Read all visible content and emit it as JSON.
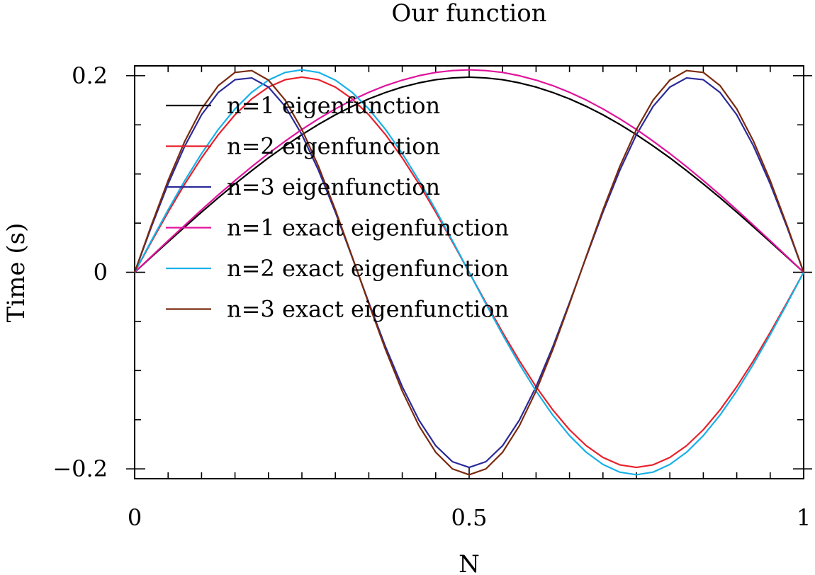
{
  "chart_data": {
    "type": "line",
    "title": "Our function",
    "xlabel": "N",
    "ylabel": "Time (s)",
    "xlim": [
      0,
      1
    ],
    "ylim": [
      -0.21,
      0.21
    ],
    "x_ticks": [
      0,
      0.5,
      1
    ],
    "x_tick_labels": [
      "0",
      "0.5",
      "1"
    ],
    "y_ticks": [
      -0.2,
      0,
      0.2
    ],
    "y_tick_labels": [
      "−0.2",
      "0",
      "0.2"
    ],
    "grid": false,
    "legend_position": "top-left",
    "x": [
      0,
      0.025,
      0.05,
      0.075,
      0.1,
      0.125,
      0.15,
      0.175,
      0.2,
      0.225,
      0.25,
      0.275,
      0.3,
      0.325,
      0.35,
      0.375,
      0.4,
      0.425,
      0.45,
      0.475,
      0.5,
      0.525,
      0.55,
      0.575,
      0.6,
      0.625,
      0.65,
      0.675,
      0.7,
      0.725,
      0.75,
      0.775,
      0.8,
      0.825,
      0.85,
      0.875,
      0.9,
      0.925,
      0.95,
      0.975,
      1
    ],
    "series": [
      {
        "name": "n=1 eigenfunction",
        "color": "#000000",
        "values": [
          0,
          0.0155,
          0.0309,
          0.0462,
          0.0612,
          0.0758,
          0.0899,
          0.1034,
          0.1164,
          0.1285,
          0.14,
          0.1505,
          0.1602,
          0.1688,
          0.1764,
          0.1829,
          0.1884,
          0.1927,
          0.1959,
          0.1977,
          0.1985,
          0.1977,
          0.1959,
          0.1927,
          0.1884,
          0.1829,
          0.1764,
          0.1688,
          0.1602,
          0.1505,
          0.14,
          0.1285,
          0.1164,
          0.1034,
          0.0899,
          0.0758,
          0.0612,
          0.0462,
          0.0309,
          0.0155,
          0
        ]
      },
      {
        "name": "n=2 eigenfunction",
        "color": "#e8202a",
        "values": [
          0,
          0.0309,
          0.0612,
          0.0899,
          0.1164,
          0.14,
          0.1602,
          0.1764,
          0.1884,
          0.1959,
          0.1985,
          0.1959,
          0.1884,
          0.1764,
          0.1602,
          0.14,
          0.1164,
          0.0899,
          0.0612,
          0.0309,
          0,
          -0.0309,
          -0.0612,
          -0.0899,
          -0.1164,
          -0.14,
          -0.1602,
          -0.1764,
          -0.1884,
          -0.1959,
          -0.1985,
          -0.1959,
          -0.1884,
          -0.1764,
          -0.1602,
          -0.14,
          -0.1164,
          -0.0899,
          -0.0612,
          -0.0309,
          0
        ]
      },
      {
        "name": "n=3 eigenfunction",
        "color": "#2a2a9a",
        "values": [
          0,
          0.0462,
          0.0899,
          0.1285,
          0.1602,
          0.1829,
          0.1959,
          0.1977,
          0.1884,
          0.1688,
          0.14,
          0.1034,
          0.0612,
          0.0155,
          -0.0309,
          -0.0758,
          -0.1164,
          -0.1505,
          -0.1764,
          -0.1927,
          -0.1985,
          -0.1927,
          -0.1764,
          -0.1505,
          -0.1164,
          -0.0758,
          -0.0309,
          0.0155,
          0.0612,
          0.1034,
          0.14,
          0.1688,
          0.1884,
          0.1977,
          0.1959,
          0.1829,
          0.1602,
          0.1285,
          0.0899,
          0.0462,
          0
        ]
      },
      {
        "name": "n=1 exact eigenfunction",
        "color": "#e0139c",
        "values": [
          0,
          0.0161,
          0.0321,
          0.0479,
          0.0635,
          0.0787,
          0.0933,
          0.1074,
          0.1208,
          0.1334,
          0.1453,
          0.1562,
          0.1662,
          0.1752,
          0.1831,
          0.1899,
          0.1955,
          0.2,
          0.2033,
          0.2052,
          0.206,
          0.2052,
          0.2033,
          0.2,
          0.1955,
          0.1899,
          0.1831,
          0.1752,
          0.1662,
          0.1562,
          0.1453,
          0.1334,
          0.1208,
          0.1074,
          0.0933,
          0.0787,
          0.0635,
          0.0479,
          0.0321,
          0.0161,
          0
        ]
      },
      {
        "name": "n=2 exact eigenfunction",
        "color": "#18b0e8",
        "values": [
          0,
          0.0321,
          0.0635,
          0.0933,
          0.1208,
          0.1453,
          0.1662,
          0.1831,
          0.1955,
          0.2033,
          0.206,
          0.2033,
          0.1955,
          0.1831,
          0.1662,
          0.1453,
          0.1208,
          0.0933,
          0.0635,
          0.0321,
          0,
          -0.0321,
          -0.0635,
          -0.0933,
          -0.1208,
          -0.1453,
          -0.1662,
          -0.1831,
          -0.1955,
          -0.2033,
          -0.206,
          -0.2033,
          -0.1955,
          -0.1831,
          -0.1662,
          -0.1453,
          -0.1208,
          -0.0933,
          -0.0635,
          -0.0321,
          0
        ]
      },
      {
        "name": "n=3 exact eigenfunction",
        "color": "#7a2a0e",
        "values": [
          0,
          0.0479,
          0.0933,
          0.1334,
          0.1662,
          0.1899,
          0.2033,
          0.2052,
          0.1955,
          0.1752,
          0.1453,
          0.1074,
          0.0635,
          0.0161,
          -0.0321,
          -0.0787,
          -0.1208,
          -0.1562,
          -0.1831,
          -0.2,
          -0.206,
          -0.2,
          -0.1831,
          -0.1562,
          -0.1208,
          -0.0787,
          -0.0321,
          0.0161,
          0.0635,
          0.1074,
          0.1453,
          0.1752,
          0.1955,
          0.2052,
          0.2033,
          0.1899,
          0.1662,
          0.1334,
          0.0933,
          0.0479,
          0
        ]
      }
    ]
  }
}
